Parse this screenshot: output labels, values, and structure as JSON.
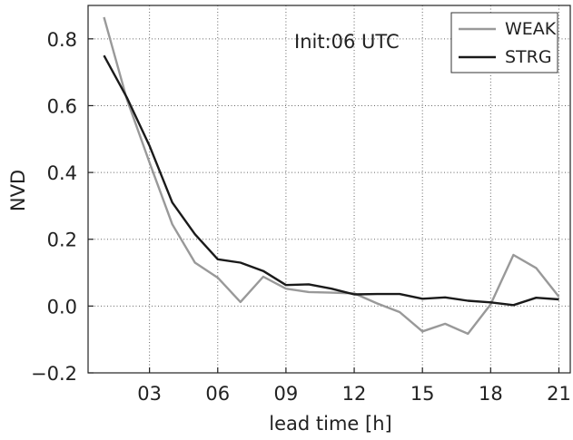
{
  "chart_data": {
    "type": "line",
    "title": "",
    "xlabel": "lead time [h]",
    "ylabel": "NVD",
    "annotation": "Init:06 UTC",
    "xlim": [
      0.3,
      21.5
    ],
    "ylim": [
      -0.2,
      0.9
    ],
    "xticks": [
      {
        "value": 3,
        "label": "03"
      },
      {
        "value": 6,
        "label": "06"
      },
      {
        "value": 9,
        "label": "09"
      },
      {
        "value": 12,
        "label": "12"
      },
      {
        "value": 15,
        "label": "15"
      },
      {
        "value": 18,
        "label": "18"
      },
      {
        "value": 21,
        "label": "21"
      }
    ],
    "yticks": [
      {
        "value": -0.2,
        "label": "−0.2"
      },
      {
        "value": 0.0,
        "label": "0.0"
      },
      {
        "value": 0.2,
        "label": "0.2"
      },
      {
        "value": 0.4,
        "label": "0.4"
      },
      {
        "value": 0.6,
        "label": "0.6"
      },
      {
        "value": 0.8,
        "label": "0.8"
      }
    ],
    "grid": true,
    "legend_position": "top-right",
    "x": [
      1,
      2,
      3,
      4,
      5,
      6,
      7,
      8,
      9,
      10,
      11,
      12,
      13,
      14,
      15,
      16,
      17,
      18,
      19,
      20,
      21
    ],
    "series": [
      {
        "name": "WEAK",
        "color": "#999999",
        "values": [
          0.865,
          0.62,
          0.43,
          0.245,
          0.13,
          0.085,
          0.012,
          0.088,
          0.052,
          0.042,
          0.04,
          0.038,
          0.008,
          -0.018,
          -0.076,
          -0.053,
          -0.083,
          0.005,
          0.153,
          0.114,
          0.028
        ]
      },
      {
        "name": "STRG",
        "color": "#1a1a1a",
        "values": [
          0.75,
          0.625,
          0.48,
          0.31,
          0.215,
          0.14,
          0.13,
          0.105,
          0.063,
          0.065,
          0.052,
          0.035,
          0.036,
          0.036,
          0.022,
          0.026,
          0.016,
          0.011,
          0.003,
          0.025,
          0.02
        ]
      }
    ]
  }
}
